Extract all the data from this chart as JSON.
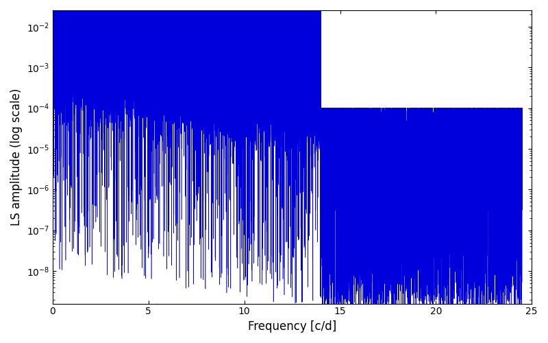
{
  "line_color": "#0000dd",
  "xlabel": "Frequency [c/d]",
  "ylabel": "LS amplitude (log scale)",
  "xlim": [
    0,
    25
  ],
  "ylim_log_min": -8.8,
  "ylim_log_max": -1.6,
  "figsize": [
    8.0,
    5.0
  ],
  "dpi": 100,
  "freq_max": 24.5,
  "seed": 42
}
